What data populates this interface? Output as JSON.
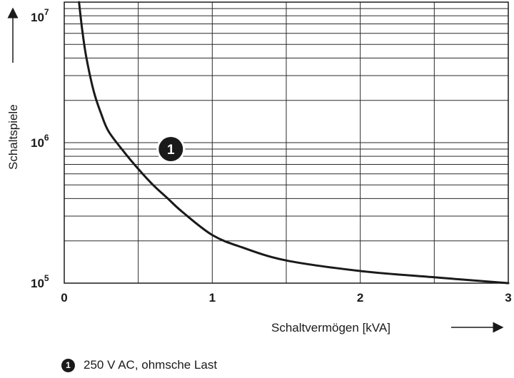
{
  "chart_data": {
    "type": "line",
    "xlabel": "Schaltvermögen [kVA]",
    "ylabel": "Schaltspiele",
    "xlim": [
      0,
      3
    ],
    "ylim": [
      100000,
      10000000
    ],
    "y_scale": "log",
    "grid": true,
    "x_ticks": [
      "0",
      "1",
      "2",
      "3"
    ],
    "y_ticks": [
      {
        "base": "10",
        "exp": "5"
      },
      {
        "base": "10",
        "exp": "6"
      },
      {
        "base": "10",
        "exp": "7"
      }
    ],
    "annotation": {
      "label": "1",
      "x": 0.72,
      "y": 900000
    },
    "series": [
      {
        "marker": "1",
        "color": "#1a1a1a",
        "x": [
          0.1,
          0.12,
          0.15,
          0.2,
          0.25,
          0.3,
          0.4,
          0.5,
          0.6,
          0.7,
          0.8,
          1.0,
          1.2,
          1.5,
          2.0,
          2.5,
          3.0
        ],
        "y": [
          10000000,
          6500000,
          4000000,
          2300000,
          1600000,
          1200000,
          870000,
          650000,
          500000,
          400000,
          320000,
          220000,
          180000,
          145000,
          122000,
          110000,
          100000
        ]
      }
    ]
  },
  "legend": {
    "number": "1",
    "text": "250 V AC, ohmsche Last"
  }
}
